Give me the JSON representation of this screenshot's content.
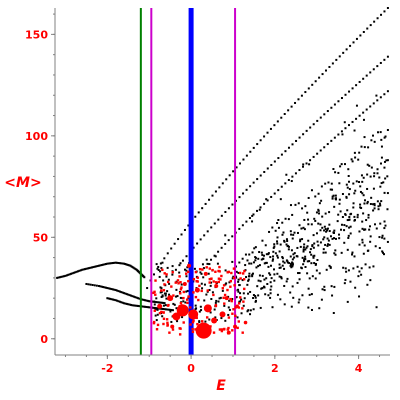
{
  "chart_data": {
    "type": "scatter",
    "title": "",
    "xlabel": "E",
    "ylabel": "<M>",
    "xlim": [
      -3.25,
      4.75
    ],
    "ylim": [
      -8,
      163
    ],
    "x_ticks": [
      -2,
      0,
      2,
      4
    ],
    "x_tick_labels": [
      "-2",
      "0",
      "2",
      "4"
    ],
    "y_ticks": [
      0,
      50,
      100,
      150
    ],
    "y_tick_labels": [
      "0",
      "50",
      "100",
      "150"
    ],
    "grid": false,
    "legend": "none",
    "colors": {
      "axis": "#808080",
      "labels": "#ff0000",
      "background_points": "#000000",
      "highlight_points": "#ff0000",
      "line_green": "#008000",
      "line_magenta": "#cc00cc",
      "line_blue": "#0000ff"
    },
    "vertical_lines": [
      {
        "x": -1.2,
        "color": "#008000",
        "width": 2
      },
      {
        "x": -0.95,
        "color": "#cc00cc",
        "width": 2
      },
      {
        "x": 0.0,
        "color": "#0000ff",
        "width": 5
      },
      {
        "x": 1.05,
        "color": "#cc00cc",
        "width": 2
      }
    ],
    "background_bands": [
      {
        "x_start": -1.05,
        "y_start": 25,
        "x_end": 4.7,
        "y_end": 163,
        "x_curve_start": -1.05
      },
      {
        "x_start": -0.7,
        "y_start": 23,
        "x_end": 4.7,
        "y_end": 139
      },
      {
        "x_start": -0.2,
        "y_start": 20,
        "x_end": 4.7,
        "y_end": 122
      },
      {
        "x_start": 0.6,
        "y_start": 20,
        "x_end": 4.7,
        "y_end": 103
      },
      {
        "x_start": 0.9,
        "y_start": 18,
        "x_end": 4.7,
        "y_end": 88
      },
      {
        "x_start": 1.5,
        "y_start": 22,
        "x_end": 4.7,
        "y_end": 72
      }
    ],
    "left_arc": [
      [
        -3.2,
        30
      ],
      [
        -3.0,
        31
      ],
      [
        -2.8,
        32.5
      ],
      [
        -2.6,
        34
      ],
      [
        -2.4,
        35
      ],
      [
        -2.2,
        36
      ],
      [
        -2.0,
        37
      ],
      [
        -1.8,
        37.5
      ],
      [
        -1.6,
        37
      ],
      [
        -1.45,
        36
      ],
      [
        -1.3,
        34
      ],
      [
        -1.2,
        32
      ],
      [
        -1.1,
        30
      ]
    ],
    "left_arc_2": [
      [
        -2.5,
        27
      ],
      [
        -2.2,
        26
      ],
      [
        -2.0,
        25
      ],
      [
        -1.8,
        24
      ],
      [
        -1.6,
        22.5
      ],
      [
        -1.4,
        21
      ],
      [
        -1.2,
        19.5
      ],
      [
        -1.0,
        18.5
      ],
      [
        -0.8,
        18
      ],
      [
        -0.6,
        17.5
      ]
    ],
    "left_arc_3": [
      [
        -2.0,
        20
      ],
      [
        -1.8,
        19
      ],
      [
        -1.6,
        17.5
      ],
      [
        -1.4,
        16.5
      ],
      [
        -1.2,
        16
      ],
      [
        -1.0,
        15.5
      ],
      [
        -0.8,
        15
      ],
      [
        -0.6,
        14.5
      ],
      [
        -0.4,
        14
      ]
    ],
    "highlight_points": [
      {
        "x": 0.3,
        "y": 4,
        "size": 8
      },
      {
        "x": -0.2,
        "y": 14,
        "size": 6
      },
      {
        "x": 0.05,
        "y": 12,
        "size": 5
      },
      {
        "x": -0.35,
        "y": 11,
        "size": 4
      },
      {
        "x": 0.4,
        "y": 15,
        "size": 4
      },
      {
        "x": -0.5,
        "y": 20,
        "size": 3
      },
      {
        "x": 0.55,
        "y": 9,
        "size": 3
      },
      {
        "x": 0.75,
        "y": 12,
        "size": 3
      },
      {
        "x": -0.75,
        "y": 16,
        "size": 2.5
      },
      {
        "x": 0.15,
        "y": 24,
        "size": 2.5
      },
      {
        "x": -0.15,
        "y": 27,
        "size": 2
      },
      {
        "x": 0.85,
        "y": 20,
        "size": 2
      },
      {
        "x": 1.05,
        "y": 6,
        "size": 2
      },
      {
        "x": -0.05,
        "y": 36,
        "size": 2
      },
      {
        "x": 0.35,
        "y": 32,
        "size": 2
      },
      {
        "x": 0.6,
        "y": 26,
        "size": 2
      },
      {
        "x": -0.45,
        "y": 6,
        "size": 2
      },
      {
        "x": 0.9,
        "y": 3,
        "size": 2
      },
      {
        "x": 1.3,
        "y": 8,
        "size": 1.8
      },
      {
        "x": 1.1,
        "y": 16,
        "size": 1.8
      }
    ]
  }
}
